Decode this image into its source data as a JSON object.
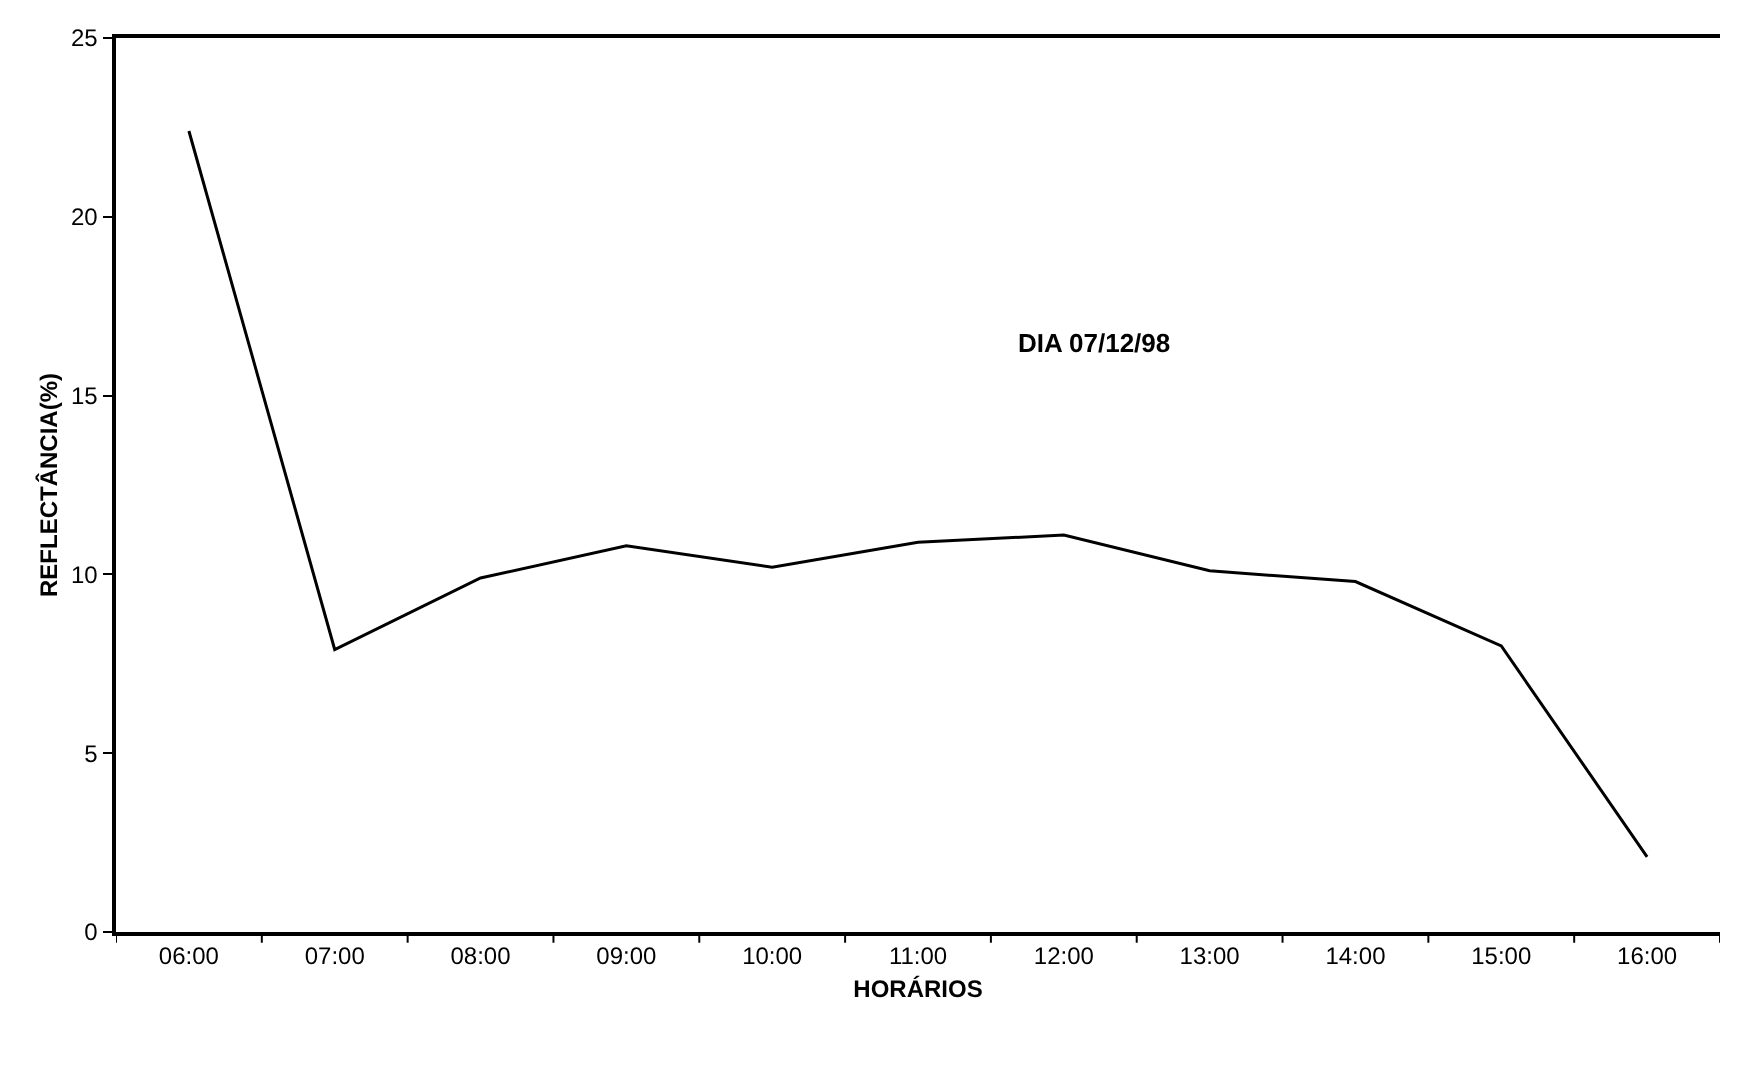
{
  "chart_data": {
    "type": "line",
    "categories": [
      "06:00",
      "07:00",
      "08:00",
      "09:00",
      "10:00",
      "11:00",
      "12:00",
      "13:00",
      "14:00",
      "15:00",
      "16:00"
    ],
    "series": [
      {
        "color": "#000000",
        "values": [
          22.4,
          7.9,
          9.9,
          10.8,
          10.2,
          10.9,
          11.1,
          10.1,
          9.8,
          8.0,
          2.1
        ]
      }
    ],
    "xlabel": "HORÁRIOS",
    "ylabel": "REFLECTÂNCIA(%)",
    "ylim": [
      0,
      25
    ],
    "yticks": [
      0,
      5,
      10,
      15,
      20,
      25
    ],
    "annotations": [
      "DIA 07/12/98"
    ],
    "marker": "none",
    "line_style": "solid"
  }
}
